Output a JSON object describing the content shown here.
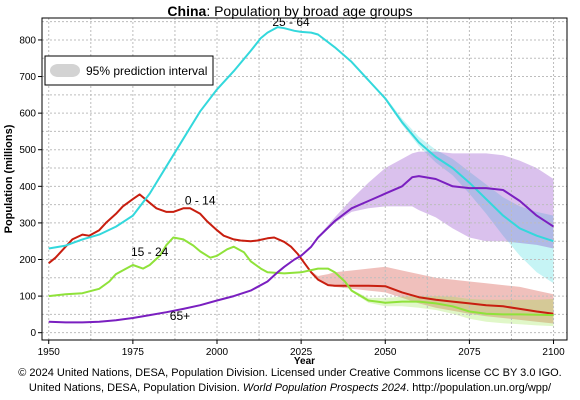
{
  "title": {
    "bold": "China",
    "rest": ": Population by broad age groups"
  },
  "footer": {
    "line1": "© 2024 United Nations, DESA, Population Division. Licensed under Creative Commons license CC BY 3.0 IGO.",
    "line2_a": "United Nations, DESA, Population Division. ",
    "line2_italic": "World Population Prospects 2024",
    "line2_b": ". http://population.un.org/wpp/"
  },
  "colors": {
    "age_0_14": "#c81e0f",
    "age_15_24": "#8fe23a",
    "age_25_64": "#33d8dc",
    "age_65_plus": "#7a1fc0"
  },
  "chart_data": {
    "type": "line",
    "xlabel": "Year",
    "ylabel": "Population (millions)",
    "xlim": [
      1948,
      2104
    ],
    "ylim": [
      -20,
      860
    ],
    "x_ticks": [
      1950,
      1975,
      2000,
      2025,
      2050,
      2075,
      2100
    ],
    "y_ticks": [
      0,
      100,
      200,
      300,
      400,
      500,
      600,
      700,
      800
    ],
    "grid": true,
    "legend": {
      "position": "top-left",
      "entries": [
        "95% prediction interval"
      ]
    },
    "series": [
      {
        "name": "0 - 14",
        "color": "#c81e0f",
        "x": [
          1950,
          1952,
          1955,
          1957,
          1960,
          1962,
          1965,
          1967,
          1970,
          1972,
          1975,
          1977,
          1980,
          1982,
          1985,
          1987,
          1990,
          1992,
          1995,
          1997,
          2000,
          2002,
          2005,
          2007,
          2010,
          2012,
          2015,
          2017,
          2020,
          2022,
          2024,
          2026,
          2028,
          2030,
          2033,
          2035,
          2040,
          2045,
          2050,
          2055,
          2060,
          2065,
          2070,
          2075,
          2080,
          2085,
          2090,
          2095,
          2100
        ],
        "y": [
          190,
          205,
          235,
          255,
          268,
          265,
          280,
          300,
          325,
          345,
          365,
          378,
          355,
          340,
          330,
          330,
          340,
          340,
          325,
          305,
          280,
          265,
          255,
          252,
          250,
          252,
          258,
          260,
          248,
          235,
          215,
          190,
          165,
          145,
          130,
          128,
          128,
          128,
          127,
          110,
          97,
          90,
          85,
          80,
          75,
          72,
          65,
          58,
          52
        ],
        "band_lo": [
          null,
          null,
          null,
          null,
          null,
          null,
          null,
          null,
          null,
          null,
          null,
          null,
          null,
          null,
          null,
          null,
          null,
          null,
          null,
          null,
          null,
          null,
          null,
          null,
          null,
          null,
          null,
          null,
          null,
          null,
          215,
          190,
          165,
          145,
          128,
          125,
          120,
          115,
          110,
          95,
          80,
          68,
          60,
          52,
          45,
          40,
          35,
          30,
          25
        ],
        "band_hi": [
          null,
          null,
          null,
          null,
          null,
          null,
          null,
          null,
          null,
          null,
          null,
          null,
          null,
          null,
          null,
          null,
          null,
          null,
          null,
          null,
          null,
          null,
          null,
          null,
          null,
          null,
          null,
          null,
          null,
          null,
          215,
          190,
          168,
          155,
          160,
          165,
          170,
          175,
          180,
          170,
          160,
          150,
          145,
          140,
          135,
          130,
          125,
          115,
          105
        ]
      },
      {
        "name": "15 - 24",
        "color": "#8fe23a",
        "x": [
          1950,
          1955,
          1960,
          1965,
          1968,
          1970,
          1973,
          1975,
          1978,
          1980,
          1983,
          1985,
          1987,
          1990,
          1993,
          1995,
          1998,
          2000,
          2003,
          2005,
          2008,
          2010,
          2013,
          2015,
          2020,
          2025,
          2030,
          2033,
          2035,
          2038,
          2040,
          2045,
          2050,
          2055,
          2060,
          2065,
          2070,
          2075,
          2080,
          2085,
          2090,
          2095,
          2100
        ],
        "y": [
          100,
          105,
          108,
          120,
          140,
          160,
          175,
          185,
          175,
          185,
          210,
          240,
          260,
          255,
          238,
          222,
          205,
          210,
          228,
          235,
          220,
          195,
          175,
          165,
          162,
          165,
          175,
          175,
          165,
          140,
          115,
          88,
          82,
          85,
          85,
          80,
          72,
          58,
          52,
          50,
          50,
          49,
          48
        ],
        "band_lo": [
          null,
          null,
          null,
          null,
          null,
          null,
          null,
          null,
          null,
          null,
          null,
          null,
          null,
          null,
          null,
          null,
          null,
          null,
          null,
          null,
          null,
          null,
          null,
          null,
          null,
          165,
          175,
          175,
          165,
          140,
          112,
          82,
          72,
          72,
          68,
          62,
          52,
          38,
          30,
          26,
          23,
          20,
          18
        ],
        "band_hi": [
          null,
          null,
          null,
          null,
          null,
          null,
          null,
          null,
          null,
          null,
          null,
          null,
          null,
          null,
          null,
          null,
          null,
          null,
          null,
          null,
          null,
          null,
          null,
          null,
          null,
          165,
          175,
          175,
          165,
          140,
          118,
          95,
          95,
          98,
          100,
          100,
          98,
          92,
          90,
          90,
          90,
          90,
          92
        ]
      },
      {
        "name": "25 - 64",
        "color": "#33d8dc",
        "x": [
          1950,
          1955,
          1960,
          1965,
          1970,
          1975,
          1980,
          1985,
          1990,
          1995,
          2000,
          2005,
          2010,
          2013,
          2015,
          2018,
          2020,
          2023,
          2025,
          2028,
          2030,
          2035,
          2040,
          2045,
          2050,
          2055,
          2060,
          2065,
          2070,
          2075,
          2080,
          2085,
          2090,
          2095,
          2100
        ],
        "y": [
          230,
          238,
          255,
          268,
          290,
          320,
          380,
          455,
          530,
          605,
          665,
          715,
          770,
          805,
          820,
          835,
          832,
          825,
          822,
          820,
          815,
          780,
          740,
          690,
          640,
          575,
          520,
          480,
          450,
          410,
          365,
          320,
          285,
          265,
          250
        ],
        "band_lo": [
          null,
          null,
          null,
          null,
          null,
          null,
          null,
          null,
          null,
          null,
          null,
          null,
          null,
          null,
          null,
          null,
          null,
          null,
          822,
          820,
          815,
          780,
          738,
          688,
          636,
          568,
          510,
          465,
          430,
          380,
          325,
          265,
          210,
          165,
          135
        ],
        "band_hi": [
          null,
          null,
          null,
          null,
          null,
          null,
          null,
          null,
          null,
          null,
          null,
          null,
          null,
          null,
          null,
          null,
          null,
          null,
          822,
          820,
          815,
          780,
          742,
          692,
          645,
          585,
          535,
          500,
          475,
          440,
          405,
          370,
          345,
          330,
          320
        ]
      },
      {
        "name": "65+",
        "color": "#7a1fc0",
        "x": [
          1950,
          1955,
          1960,
          1965,
          1970,
          1975,
          1980,
          1985,
          1990,
          1995,
          2000,
          2005,
          2010,
          2015,
          2018,
          2020,
          2023,
          2025,
          2028,
          2030,
          2035,
          2040,
          2045,
          2050,
          2055,
          2058,
          2060,
          2065,
          2070,
          2075,
          2080,
          2085,
          2090,
          2095,
          2100
        ],
        "y": [
          30,
          28,
          28,
          30,
          34,
          40,
          48,
          56,
          65,
          75,
          88,
          100,
          115,
          140,
          165,
          180,
          200,
          210,
          235,
          260,
          305,
          340,
          360,
          380,
          400,
          425,
          428,
          420,
          400,
          395,
          395,
          390,
          360,
          320,
          290
        ],
        "band_lo": [
          null,
          null,
          null,
          null,
          null,
          null,
          null,
          null,
          null,
          null,
          null,
          null,
          null,
          null,
          null,
          null,
          null,
          210,
          235,
          258,
          300,
          330,
          340,
          345,
          345,
          345,
          335,
          315,
          285,
          260,
          250,
          250,
          245,
          240,
          230
        ],
        "band_hi": [
          null,
          null,
          null,
          null,
          null,
          null,
          null,
          null,
          null,
          null,
          null,
          null,
          null,
          null,
          null,
          null,
          null,
          210,
          235,
          262,
          315,
          365,
          410,
          450,
          475,
          490,
          495,
          495,
          490,
          490,
          490,
          485,
          470,
          450,
          420
        ]
      }
    ],
    "annotations": [
      {
        "text": "25 - 64",
        "x": 2022,
        "y": 838
      },
      {
        "text": "0 - 14",
        "x": 1995,
        "y": 350
      },
      {
        "text": "15 - 24",
        "x": 1980,
        "y": 210
      },
      {
        "text": "65+",
        "x": 1989,
        "y": 35
      }
    ]
  }
}
